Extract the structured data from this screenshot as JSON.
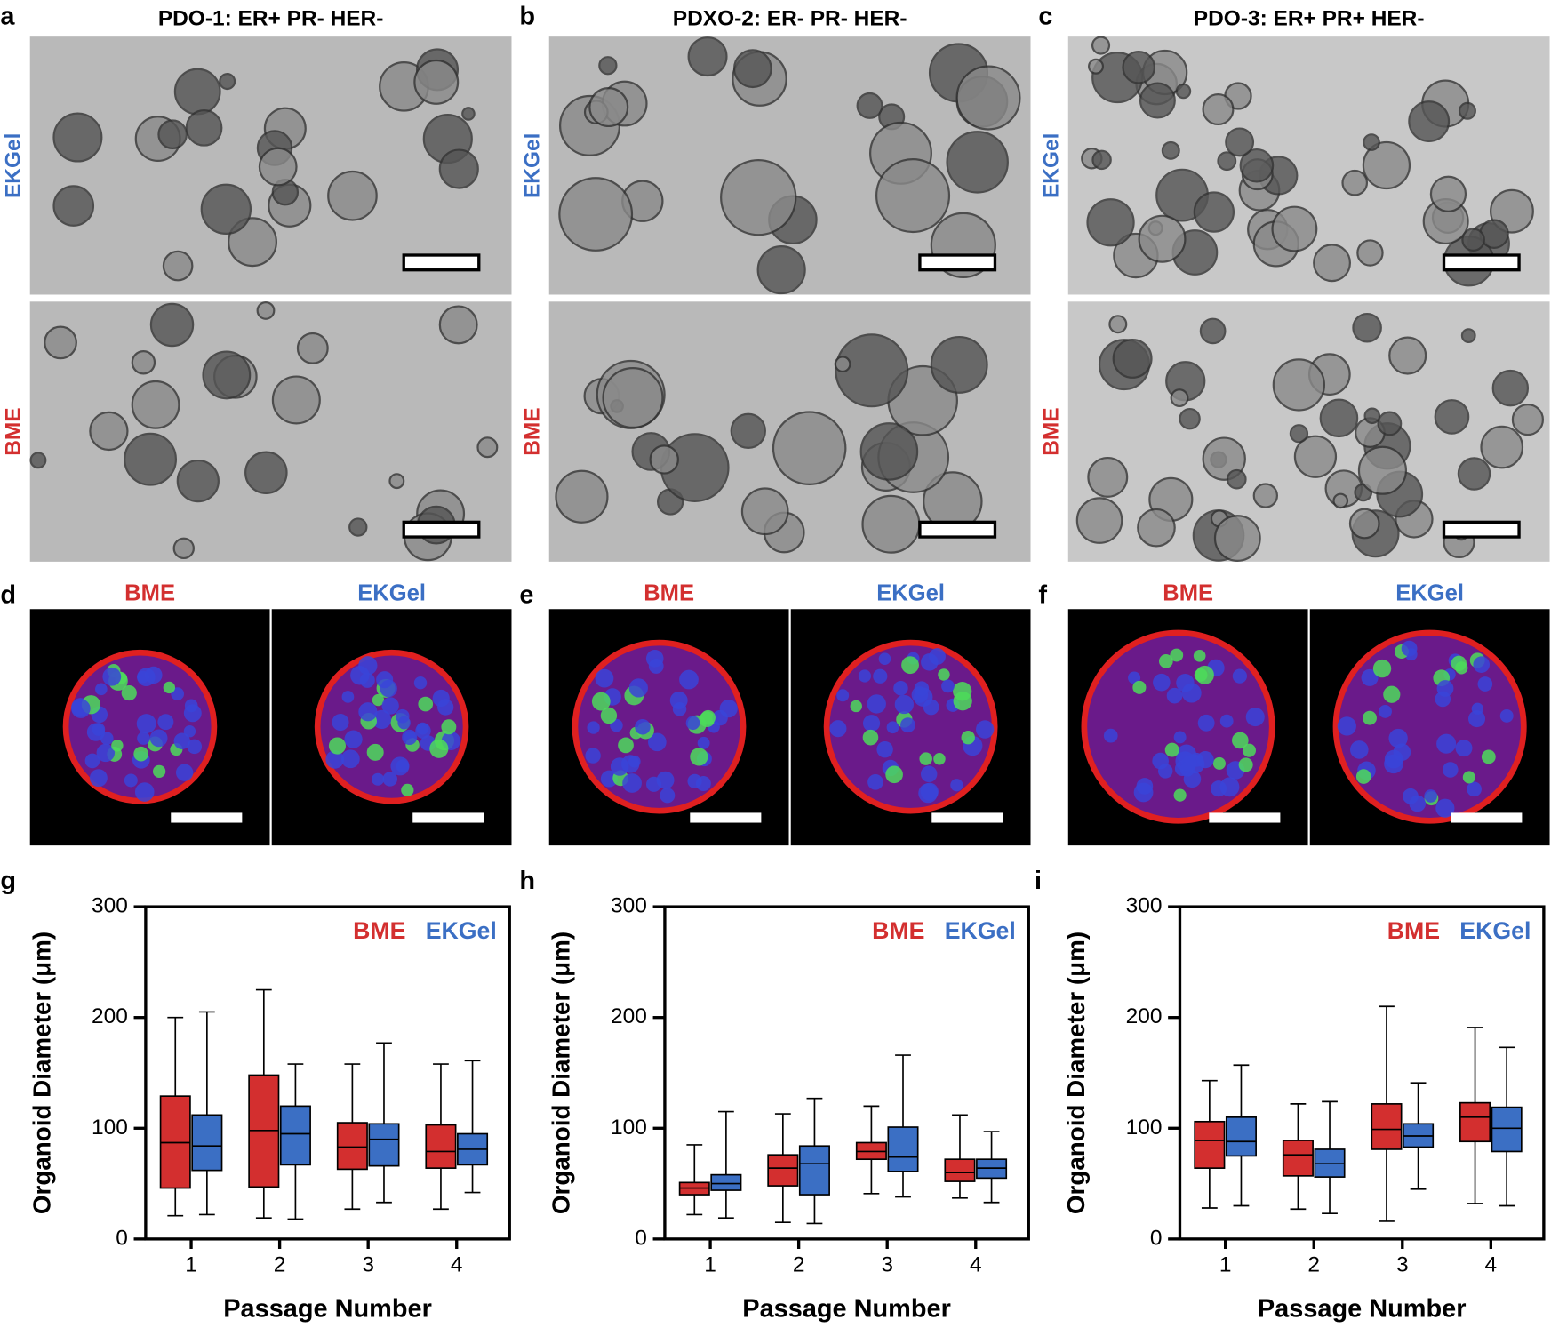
{
  "image_panels": [
    {
      "label": "a",
      "title": "PDO-1: ER+ PR- HER-",
      "rows": [
        "EKGel",
        "BME"
      ]
    },
    {
      "label": "b",
      "title": "PDXO-2: ER- PR- HER-",
      "rows": [
        "EKGel",
        "BME"
      ]
    },
    {
      "label": "c",
      "title": "PDO-3: ER+ PR+ HER-",
      "rows": [
        "EKGel",
        "BME"
      ]
    }
  ],
  "fluorescence_panels": [
    {
      "label": "d",
      "columns": [
        "BME",
        "EKGel"
      ]
    },
    {
      "label": "e",
      "columns": [
        "BME",
        "EKGel"
      ]
    },
    {
      "label": "f",
      "columns": [
        "BME",
        "EKGel"
      ]
    }
  ],
  "chart_data": [
    {
      "type": "box",
      "panel_label": "g",
      "xlabel": "Passage Number",
      "ylabel": "Organoid Diameter (μm)",
      "categories": [
        "1",
        "2",
        "3",
        "4"
      ],
      "ylim": [
        0,
        300
      ],
      "yticks": [
        0,
        100,
        200,
        300
      ],
      "series": [
        {
          "name": "BME",
          "color": "#d32f2f",
          "values": [
            {
              "min": 21,
              "q1": 46,
              "median": 87,
              "q3": 129,
              "max": 200
            },
            {
              "min": 19,
              "q1": 47,
              "median": 98,
              "q3": 148,
              "max": 225
            },
            {
              "min": 27,
              "q1": 63,
              "median": 83,
              "q3": 105,
              "max": 158
            },
            {
              "min": 27,
              "q1": 64,
              "median": 79,
              "q3": 103,
              "max": 158
            }
          ]
        },
        {
          "name": "EKGel",
          "color": "#3b6fc4",
          "values": [
            {
              "min": 22,
              "q1": 62,
              "median": 84,
              "q3": 112,
              "max": 205
            },
            {
              "min": 18,
              "q1": 67,
              "median": 95,
              "q3": 120,
              "max": 158
            },
            {
              "min": 33,
              "q1": 66,
              "median": 90,
              "q3": 104,
              "max": 177
            },
            {
              "min": 42,
              "q1": 67,
              "median": 81,
              "q3": 95,
              "max": 161
            }
          ]
        }
      ]
    },
    {
      "type": "box",
      "panel_label": "h",
      "xlabel": "Passage Number",
      "ylabel": "Organoid Diameter (μm)",
      "categories": [
        "1",
        "2",
        "3",
        "4"
      ],
      "ylim": [
        0,
        300
      ],
      "yticks": [
        0,
        100,
        200,
        300
      ],
      "series": [
        {
          "name": "BME",
          "color": "#d32f2f",
          "values": [
            {
              "min": 22,
              "q1": 40,
              "median": 46,
              "q3": 51,
              "max": 85
            },
            {
              "min": 15,
              "q1": 48,
              "median": 64,
              "q3": 76,
              "max": 113
            },
            {
              "min": 41,
              "q1": 72,
              "median": 79,
              "q3": 87,
              "max": 120
            },
            {
              "min": 37,
              "q1": 52,
              "median": 60,
              "q3": 72,
              "max": 112
            }
          ]
        },
        {
          "name": "EKGel",
          "color": "#3b6fc4",
          "values": [
            {
              "min": 19,
              "q1": 44,
              "median": 50,
              "q3": 58,
              "max": 115
            },
            {
              "min": 14,
              "q1": 40,
              "median": 68,
              "q3": 84,
              "max": 127
            },
            {
              "min": 38,
              "q1": 61,
              "median": 74,
              "q3": 101,
              "max": 166
            },
            {
              "min": 33,
              "q1": 55,
              "median": 64,
              "q3": 72,
              "max": 97
            }
          ]
        }
      ]
    },
    {
      "type": "box",
      "panel_label": "i",
      "xlabel": "Passage Number",
      "ylabel": "Organoid Diameter (μm)",
      "categories": [
        "1",
        "2",
        "3",
        "4"
      ],
      "ylim": [
        0,
        300
      ],
      "yticks": [
        0,
        100,
        200,
        300
      ],
      "series": [
        {
          "name": "BME",
          "color": "#d32f2f",
          "values": [
            {
              "min": 28,
              "q1": 64,
              "median": 89,
              "q3": 106,
              "max": 143
            },
            {
              "min": 27,
              "q1": 57,
              "median": 76,
              "q3": 89,
              "max": 122
            },
            {
              "min": 16,
              "q1": 81,
              "median": 99,
              "q3": 122,
              "max": 210
            },
            {
              "min": 32,
              "q1": 88,
              "median": 110,
              "q3": 123,
              "max": 191
            }
          ]
        },
        {
          "name": "EKGel",
          "color": "#3b6fc4",
          "values": [
            {
              "min": 30,
              "q1": 75,
              "median": 88,
              "q3": 110,
              "max": 157
            },
            {
              "min": 23,
              "q1": 56,
              "median": 68,
              "q3": 81,
              "max": 124
            },
            {
              "min": 45,
              "q1": 83,
              "median": 93,
              "q3": 104,
              "max": 141
            },
            {
              "min": 30,
              "q1": 79,
              "median": 100,
              "q3": 119,
              "max": 173
            }
          ]
        }
      ]
    }
  ]
}
